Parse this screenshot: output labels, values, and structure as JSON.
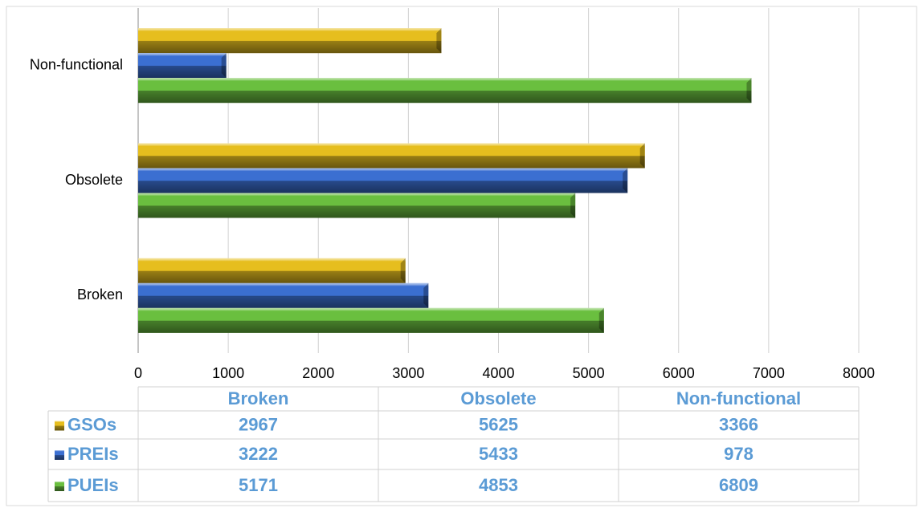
{
  "chart_data": {
    "type": "bar",
    "orientation": "horizontal",
    "categories": [
      "Broken",
      "Obsolete",
      "Non-functional"
    ],
    "series": [
      {
        "name": "GSOs",
        "color": "#e6be1e",
        "values": [
          2967,
          5625,
          3366
        ]
      },
      {
        "name": "PREIs",
        "color": "#3b6fd1",
        "values": [
          3222,
          5433,
          978
        ]
      },
      {
        "name": "PUEIs",
        "color": "#6abf3f",
        "values": [
          5171,
          4853,
          6809
        ]
      }
    ],
    "xlim": [
      0,
      8000
    ],
    "xticks": [
      0,
      1000,
      2000,
      3000,
      4000,
      5000,
      6000,
      7000,
      8000
    ],
    "grid": true,
    "data_table": true
  }
}
